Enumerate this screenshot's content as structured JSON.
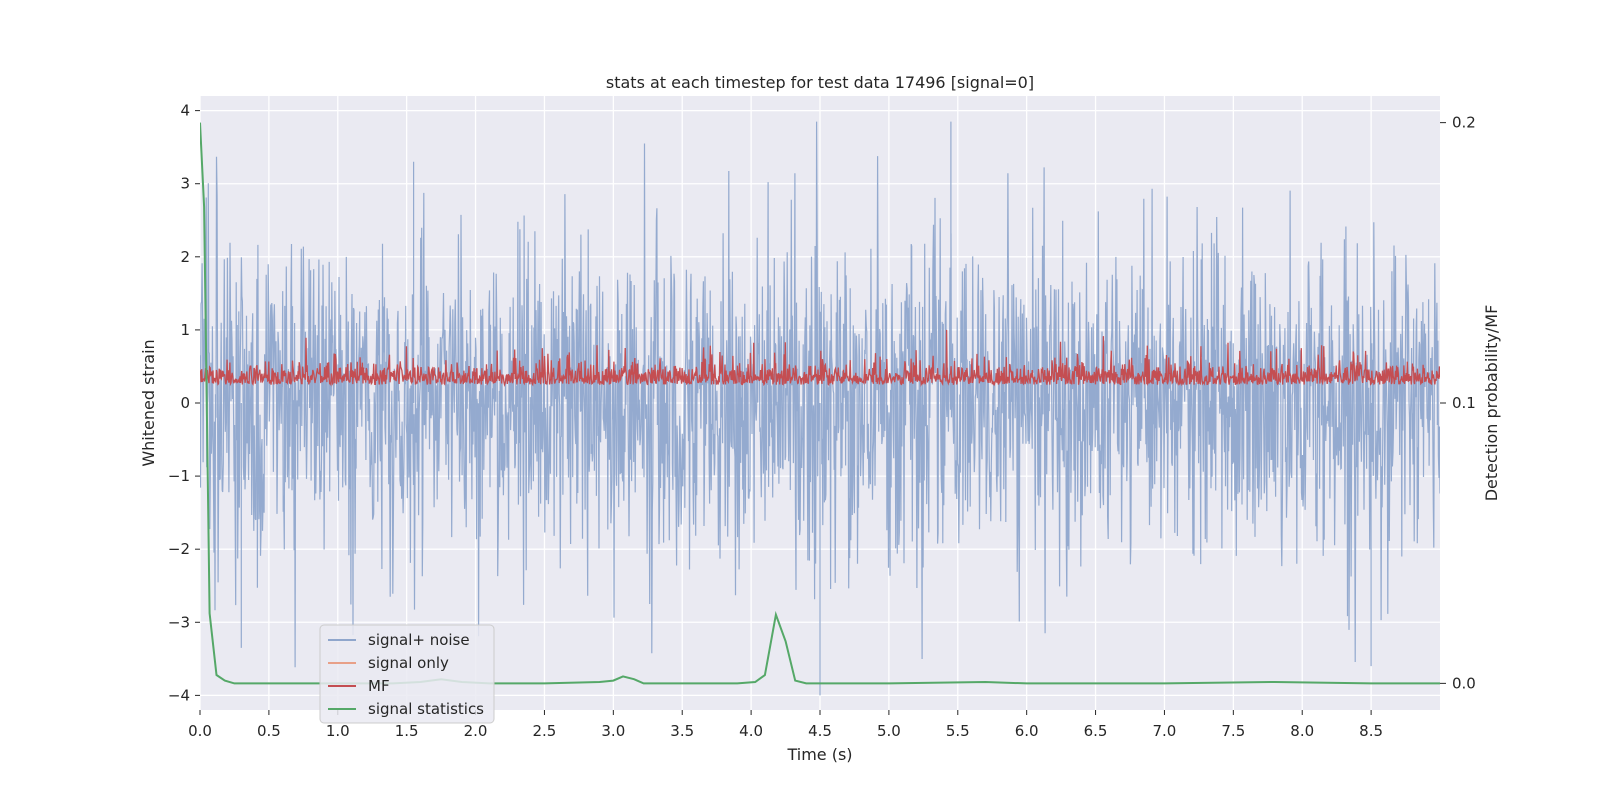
{
  "chart_data": {
    "type": "line",
    "title": "stats at each timestep for test data 17496 [signal=0]",
    "xlabel": "Time (s)",
    "ylabel_left": "Whitened strain",
    "ylabel_right": "Detection probability/MF",
    "xlim": [
      0.0,
      9.0
    ],
    "ylim_left": [
      -4.2,
      4.2
    ],
    "ylim_right": [
      -0.0095,
      0.2095
    ],
    "x_ticks": [
      "0.0",
      "0.5",
      "1.0",
      "1.5",
      "2.0",
      "2.5",
      "3.0",
      "3.5",
      "4.0",
      "4.5",
      "5.0",
      "5.5",
      "6.0",
      "6.5",
      "7.0",
      "7.5",
      "8.0",
      "8.5"
    ],
    "x_tick_values": [
      0.0,
      0.5,
      1.0,
      1.5,
      2.0,
      2.5,
      3.0,
      3.5,
      4.0,
      4.5,
      5.0,
      5.5,
      6.0,
      6.5,
      7.0,
      7.5,
      8.0,
      8.5
    ],
    "y_ticks_left": [
      "4",
      "3",
      "2",
      "1",
      "0",
      "−1",
      "−2",
      "−3",
      "−4"
    ],
    "y_tick_values_left": [
      4,
      3,
      2,
      1,
      0,
      -1,
      -2,
      -3,
      -4
    ],
    "y_ticks_right": [
      "0.2",
      "0.1",
      "0.0"
    ],
    "y_tick_values_right": [
      0.2,
      0.1,
      0.0
    ],
    "grid": true,
    "legend_position": "lower-left",
    "colors": {
      "background": "#eaeaf2",
      "grid": "#ffffff",
      "noise": "#8fa6cc",
      "signal_only": "#e8a088",
      "mf": "#c44e52",
      "signal_stats": "#55a868"
    },
    "series": [
      {
        "name": "signal+ noise",
        "axis": "left",
        "style": "dense-noise",
        "x_range": [
          0.0,
          9.0
        ],
        "approx_range": [
          -4.0,
          3.85
        ],
        "notable_peaks": [
          [
            0.3,
            -3.35
          ],
          [
            1.55,
            3.3
          ],
          [
            4.5,
            -4.0
          ],
          [
            5.45,
            3.85
          ],
          [
            8.5,
            -3.6
          ]
        ]
      },
      {
        "name": "signal only",
        "axis": "left",
        "x": [
          0.0,
          9.0
        ],
        "y": [
          0.0,
          0.0
        ]
      },
      {
        "name": "MF",
        "axis": "left",
        "style": "dense-noise",
        "x_range": [
          0.0,
          9.0
        ],
        "approx_range": [
          0.0,
          1.0
        ],
        "approx_mean": 0.3
      },
      {
        "name": "signal statistics",
        "axis": "right",
        "x": [
          0.0,
          0.03,
          0.07,
          0.12,
          0.18,
          0.25,
          0.4,
          0.6,
          1.0,
          1.4,
          1.6,
          1.75,
          1.9,
          2.1,
          2.5,
          2.9,
          3.0,
          3.07,
          3.15,
          3.22,
          3.5,
          3.9,
          4.03,
          4.1,
          4.18,
          4.25,
          4.32,
          4.4,
          5.0,
          5.7,
          6.0,
          7.0,
          7.8,
          8.5,
          9.0
        ],
        "y": [
          0.2,
          0.17,
          0.025,
          0.003,
          0.001,
          0.0,
          0.0,
          0.0,
          0.0,
          0.0,
          0.0005,
          0.0015,
          0.0005,
          0.0,
          0.0,
          0.0005,
          0.001,
          0.0025,
          0.0015,
          0.0,
          0.0,
          0.0,
          0.0005,
          0.003,
          0.0245,
          0.015,
          0.001,
          0.0,
          0.0,
          0.0005,
          0.0,
          0.0,
          0.0005,
          0.0,
          0.0
        ]
      }
    ]
  }
}
